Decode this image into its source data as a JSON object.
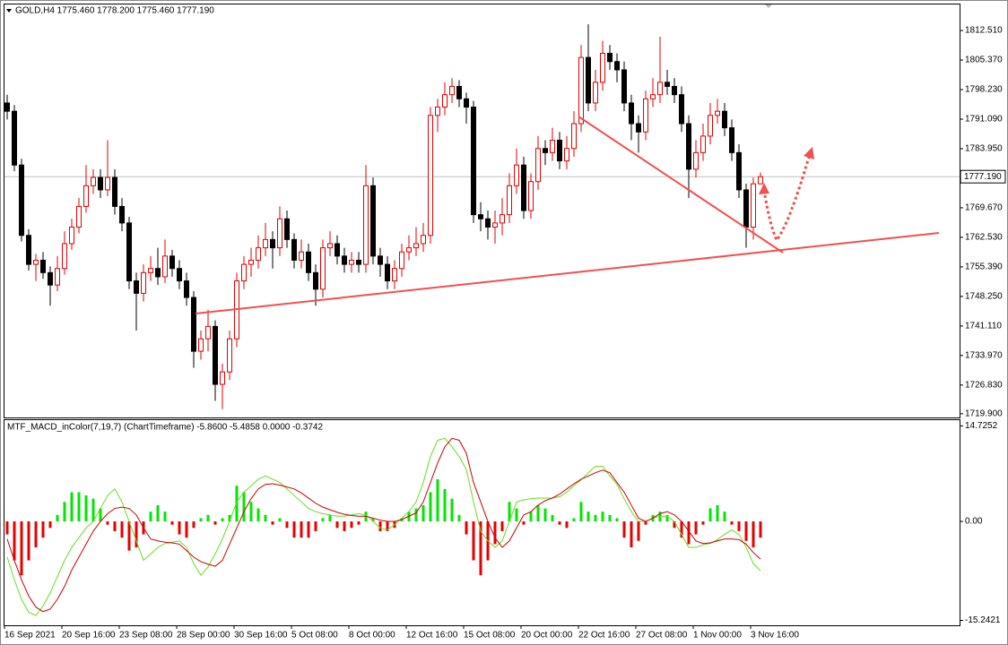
{
  "chart_data": [
    {
      "type": "candlestick",
      "title": "GOLD,H4  1775.460 1778.200 1775.460 1777.190",
      "up_color": "#e00000",
      "down_color": "#000000",
      "ylim": [
        1719.0,
        1818.8
      ],
      "yticks": [
        {
          "value": 1812.51,
          "label": "1812.510"
        },
        {
          "value": 1805.37,
          "label": "1805.370"
        },
        {
          "value": 1798.23,
          "label": "1798.230"
        },
        {
          "value": 1791.09,
          "label": "1791.090"
        },
        {
          "value": 1783.95,
          "label": "1783.950"
        },
        {
          "value": 1769.67,
          "label": "1769.670"
        },
        {
          "value": 1762.53,
          "label": "1762.530"
        },
        {
          "value": 1755.39,
          "label": "1755.390"
        },
        {
          "value": 1748.25,
          "label": "1748.250"
        },
        {
          "value": 1741.11,
          "label": "1741.110"
        },
        {
          "value": 1733.97,
          "label": "1733.970"
        },
        {
          "value": 1726.83,
          "label": "1726.830"
        },
        {
          "value": 1719.9,
          "label": "1719.900"
        }
      ],
      "current_price": {
        "value": 1777.19,
        "label": "1777.190"
      },
      "open": [
        1795,
        1793,
        1780,
        1763,
        1756,
        1757,
        1754,
        1751,
        1755,
        1761,
        1765,
        1770,
        1775,
        1777,
        1774,
        1777,
        1770,
        1766,
        1752,
        1749,
        1754,
        1755,
        1753,
        1758,
        1755,
        1752,
        1748,
        1735,
        1738,
        1741,
        1727,
        1730,
        1738,
        1752,
        1756,
        1757,
        1760,
        1762,
        1760,
        1767,
        1762,
        1757,
        1759,
        1754,
        1750,
        1760,
        1761,
        1758,
        1756,
        1757,
        1756,
        1775,
        1758,
        1756,
        1752,
        1755,
        1759,
        1760,
        1761,
        1763,
        1792,
        1794,
        1797,
        1799,
        1796,
        1794,
        1768,
        1767,
        1765,
        1766,
        1768,
        1775,
        1780,
        1769,
        1776,
        1784,
        1783,
        1786,
        1781,
        1784,
        1790,
        1806,
        1795,
        1800,
        1807,
        1805,
        1803,
        1795,
        1790,
        1788,
        1796,
        1797,
        1800,
        1799,
        1797,
        1790,
        1779,
        1783,
        1787,
        1792,
        1793,
        1789,
        1783,
        1774,
        1765,
        1775.46
      ],
      "high": [
        1797,
        1794.5,
        1781.5,
        1764.5,
        1758.5,
        1759,
        1755.5,
        1758,
        1764,
        1767,
        1772,
        1780,
        1779,
        1779,
        1786,
        1779,
        1772,
        1767.5,
        1754,
        1756,
        1758,
        1760,
        1762,
        1759.5,
        1757,
        1754,
        1749.5,
        1740,
        1745,
        1742.5,
        1732,
        1740,
        1754,
        1758,
        1760,
        1763,
        1766,
        1764,
        1770,
        1769,
        1763.5,
        1762,
        1761,
        1756,
        1762,
        1764,
        1763,
        1760,
        1759,
        1759,
        1780,
        1777,
        1760,
        1758,
        1757,
        1761,
        1763,
        1765,
        1766,
        1794,
        1796,
        1800,
        1801,
        1800.5,
        1797.5,
        1795.5,
        1771,
        1769,
        1769,
        1772,
        1778,
        1784,
        1782,
        1778,
        1787,
        1786,
        1789,
        1788,
        1787,
        1793,
        1809,
        1814,
        1803,
        1810,
        1809,
        1807,
        1805,
        1797,
        1792,
        1798,
        1801,
        1811,
        1803,
        1801,
        1799,
        1792,
        1786,
        1790,
        1795,
        1796,
        1795,
        1791,
        1785,
        1775.5,
        1777,
        1778.2
      ],
      "low": [
        1791,
        1778.5,
        1761.5,
        1754.5,
        1752,
        1752.5,
        1746,
        1749.5,
        1753.5,
        1759.5,
        1763.5,
        1768.5,
        1773,
        1772,
        1772.5,
        1768,
        1764,
        1750,
        1740,
        1747,
        1752,
        1751,
        1751.5,
        1753,
        1750,
        1746,
        1731,
        1733,
        1735,
        1723,
        1721,
        1728,
        1736,
        1750,
        1753,
        1755,
        1758,
        1755,
        1758,
        1760,
        1755,
        1755,
        1752,
        1746,
        1748,
        1758,
        1756,
        1754,
        1754,
        1754,
        1754,
        1756,
        1753,
        1750,
        1750,
        1753,
        1757,
        1758,
        1759,
        1761,
        1788,
        1792,
        1795,
        1794,
        1790,
        1766,
        1764,
        1762,
        1761,
        1763,
        1766,
        1773,
        1767,
        1767,
        1774,
        1780,
        1781,
        1779,
        1779,
        1782,
        1788,
        1793,
        1793,
        1798,
        1803,
        1800,
        1793,
        1786,
        1783,
        1786,
        1794,
        1795,
        1797,
        1795,
        1788,
        1772,
        1777,
        1781,
        1785,
        1790,
        1787,
        1781,
        1772,
        1760,
        1762,
        1775.46
      ],
      "close": [
        1793,
        1780,
        1763,
        1756,
        1757,
        1754,
        1751,
        1755,
        1761,
        1765,
        1770,
        1775,
        1777,
        1774,
        1777,
        1770,
        1766,
        1752,
        1749,
        1754,
        1755,
        1753,
        1758,
        1755,
        1752,
        1748,
        1735,
        1738,
        1741,
        1727,
        1730,
        1738,
        1752,
        1756,
        1757,
        1760,
        1762,
        1760,
        1767,
        1762,
        1757,
        1759,
        1754,
        1750,
        1760,
        1761,
        1758,
        1756,
        1757,
        1756,
        1775,
        1758,
        1756,
        1752,
        1755,
        1759,
        1760,
        1761,
        1763,
        1792,
        1794,
        1797,
        1799,
        1796,
        1794,
        1768,
        1767,
        1765,
        1766,
        1768,
        1775,
        1780,
        1769,
        1776,
        1784,
        1783,
        1786,
        1781,
        1784,
        1790,
        1806,
        1795,
        1800,
        1807,
        1805,
        1803,
        1795,
        1790,
        1788,
        1796,
        1797,
        1800,
        1799,
        1797,
        1790,
        1779,
        1783,
        1787,
        1792,
        1793,
        1789,
        1783,
        1774,
        1765,
        1775.46,
        1777.19
      ]
    },
    {
      "type": "macd",
      "title": "MTF_MACD_inColor(7,19,7) (ChartTimeframe) -5.8600 -5.4858 0.0000 -0.3742",
      "up_color": "#00e600",
      "down_color": "#e60000",
      "ylim": [
        -16.0,
        15.6
      ],
      "yticks": [
        14.7252,
        {
          "value": 0,
          "label": "0.00"
        },
        -15.2421
      ],
      "xticks": [
        {
          "value": 0,
          "label": "16 Sep 2021"
        },
        {
          "value": 8,
          "label": "20 Sep 16:00"
        },
        {
          "value": 16,
          "label": "23 Sep 08:00"
        },
        {
          "value": 24,
          "label": "28 Sep 00:00"
        },
        {
          "value": 32,
          "label": "30 Sep 16:00"
        },
        {
          "value": 40,
          "label": "5 Oct 08:00"
        },
        {
          "value": 48,
          "label": "8 Oct 00:00"
        },
        {
          "value": 56,
          "label": "12 Oct 16:00"
        },
        {
          "value": 64,
          "label": "15 Oct 08:00"
        },
        {
          "value": 72,
          "label": "20 Oct 00:00"
        },
        {
          "value": 80,
          "label": "22 Oct 16:00"
        },
        {
          "value": 88,
          "label": "27 Oct 08:00"
        },
        {
          "value": 96,
          "label": "1 Nov 00:00"
        },
        {
          "value": 104,
          "label": "3 Nov 16:00"
        }
      ],
      "values": [
        -2,
        -6,
        -8.3,
        -6,
        -4,
        -2.5,
        -1,
        1,
        3,
        4.5,
        4.5,
        4,
        3.5,
        2,
        -0.5,
        -1.5,
        -2.5,
        -4.5,
        -4,
        -2,
        1.5,
        2.5,
        1.5,
        -0.5,
        -2,
        -2.5,
        -1,
        0.5,
        1,
        -0.5,
        0.5,
        1,
        5.5,
        4.5,
        3,
        2,
        1,
        -0.5,
        0.5,
        -1,
        -2.5,
        -2.5,
        -2.5,
        -1.5,
        0.5,
        1,
        -1,
        -1.5,
        -1,
        -0.5,
        1.5,
        0.5,
        -1.5,
        -1.5,
        -1,
        0.5,
        1.5,
        2,
        2.5,
        4.5,
        6.5,
        5,
        3.5,
        1,
        -2,
        -6,
        -8.3,
        -6,
        -3.5,
        -1.5,
        3,
        2,
        -0.5,
        1.5,
        2.5,
        2,
        1,
        -0.5,
        -1,
        0.5,
        3,
        1.5,
        1,
        1.5,
        1,
        0.5,
        -2.5,
        -4,
        -3,
        -0.5,
        1,
        1.5,
        1,
        -1,
        -2.5,
        -3.5,
        -2,
        -0.5,
        2,
        2.5,
        1.5,
        -0.5,
        -1.5,
        -3,
        -4,
        -2.5
      ],
      "lines": [
        {
          "color": "#66dd22",
          "values": [
            -5.5,
            -9,
            -12,
            -14,
            -14.5,
            -13,
            -11,
            -8.5,
            -6,
            -4,
            -2.5,
            -1,
            0,
            2,
            4,
            5,
            3,
            0,
            -3,
            -6,
            -5,
            -4,
            -3.4,
            -3.2,
            -3,
            -4,
            -6.5,
            -8.3,
            -7,
            -5,
            -2.7,
            0,
            3,
            4.5,
            5.5,
            6.5,
            7,
            6.5,
            6,
            5,
            4,
            3,
            2,
            1.5,
            1.2,
            1,
            0.8,
            0.8,
            1,
            1.2,
            1,
            0,
            -1,
            -1.3,
            -0.5,
            0.5,
            1.5,
            3,
            6,
            10,
            12.5,
            12.8,
            11.5,
            10,
            8,
            3,
            -1.5,
            -3,
            -4,
            -3,
            0,
            3,
            3.3,
            3.5,
            3.6,
            3.6,
            3.6,
            3.8,
            4.5,
            5.5,
            6.4,
            7.5,
            8.5,
            8.5,
            7,
            5.7,
            3.5,
            1.5,
            0,
            0,
            0.5,
            0.8,
            0.8,
            0,
            -2,
            -4,
            -4,
            -3.6,
            -3.4,
            -2.8,
            -2,
            -1.3,
            -2,
            -4,
            -6.5,
            -7.6
          ]
        },
        {
          "color": "#cc0000",
          "values": [
            -2.7,
            -6,
            -9,
            -11.5,
            -13.2,
            -13.9,
            -13.5,
            -12,
            -10,
            -7.5,
            -5.5,
            -3.5,
            -1.5,
            0,
            1.2,
            2,
            2.2,
            2,
            1,
            -1,
            -2.7,
            -3,
            -3.2,
            -3.3,
            -3.5,
            -4.5,
            -5.5,
            -6.2,
            -6.6,
            -6.9,
            -6,
            -3.5,
            -1,
            1.5,
            3.5,
            5,
            5.7,
            5.8,
            5.6,
            5.3,
            5,
            4.4,
            3.6,
            2.8,
            2.2,
            1.8,
            1.4,
            1.1,
            0.9,
            0.8,
            0.8,
            0.5,
            0.2,
            0,
            0,
            0.3,
            0.8,
            1.3,
            3,
            6,
            9,
            11.5,
            12.8,
            12.5,
            10.5,
            6,
            3,
            0,
            -2.5,
            -4,
            -3,
            -1,
            1,
            1.5,
            2.5,
            3.2,
            3.6,
            4.2,
            5,
            5.8,
            6.5,
            7,
            7.5,
            7.9,
            7.5,
            6,
            4.5,
            2.5,
            0.5,
            0,
            0.5,
            1.2,
            1.5,
            1,
            0,
            -1.5,
            -3,
            -3.4,
            -3.3,
            -3,
            -2.7,
            -2.7,
            -2.8,
            -3.5,
            -4.8,
            -5.8
          ]
        }
      ]
    }
  ]
}
